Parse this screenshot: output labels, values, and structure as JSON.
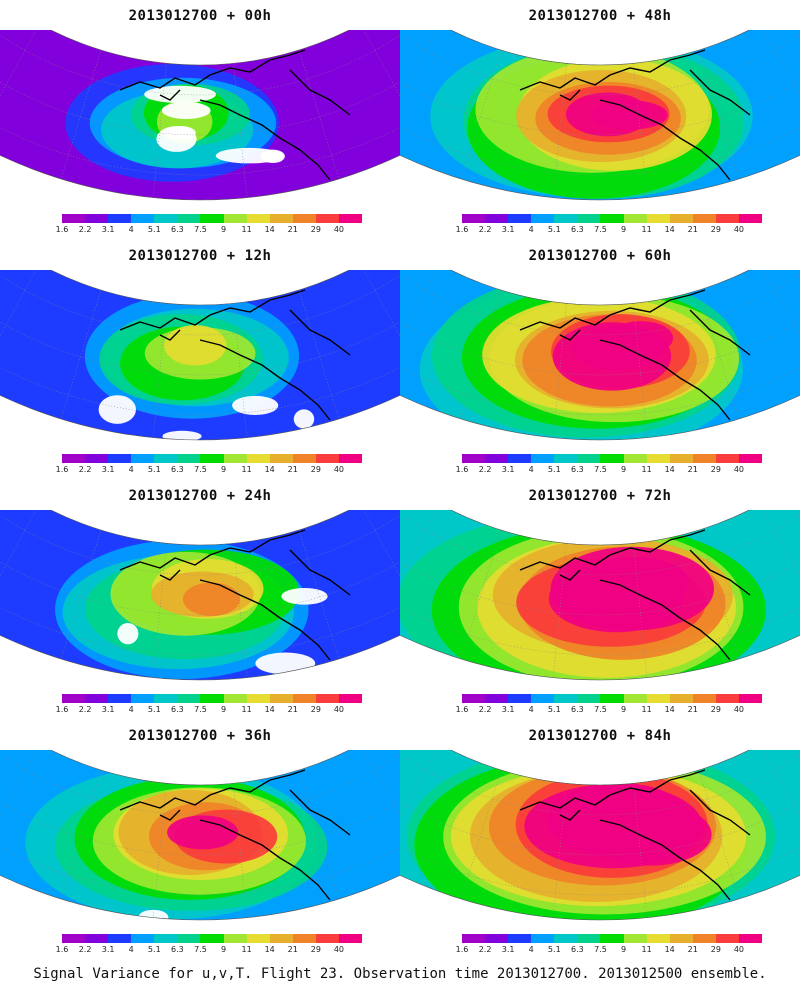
{
  "panels": [
    {
      "title": "2013012700 + 00h",
      "hour": "00h",
      "intensity": 0.3
    },
    {
      "title": "2013012700 + 12h",
      "hour": "12h",
      "intensity": 0.38
    },
    {
      "title": "2013012700 + 24h",
      "hour": "24h",
      "intensity": 0.52
    },
    {
      "title": "2013012700 + 36h",
      "hour": "36h",
      "intensity": 0.66
    },
    {
      "title": "2013012700 + 48h",
      "hour": "48h",
      "intensity": 0.76
    },
    {
      "title": "2013012700 + 60h",
      "hour": "60h",
      "intensity": 0.84
    },
    {
      "title": "2013012700 + 72h",
      "hour": "72h",
      "intensity": 0.92
    },
    {
      "title": "2013012700 + 84h",
      "hour": "84h",
      "intensity": 0.98
    }
  ],
  "colorbar": {
    "labels": [
      "1.6",
      "2.2",
      "3.1",
      "4",
      "5.1",
      "6.3",
      "7.5",
      "9",
      "11",
      "14",
      "21",
      "29",
      "40"
    ],
    "colors": [
      "#a000c8",
      "#8200dc",
      "#1e3cff",
      "#00a0ff",
      "#00c8c8",
      "#00d28c",
      "#00dc00",
      "#a0e632",
      "#e6dc32",
      "#e6af2d",
      "#f08228",
      "#fa3c3c",
      "#f00082"
    ]
  },
  "caption": "Signal Variance for u,v,T. Flight 23. Observation time 2013012700. 2013012500 ensemble."
}
